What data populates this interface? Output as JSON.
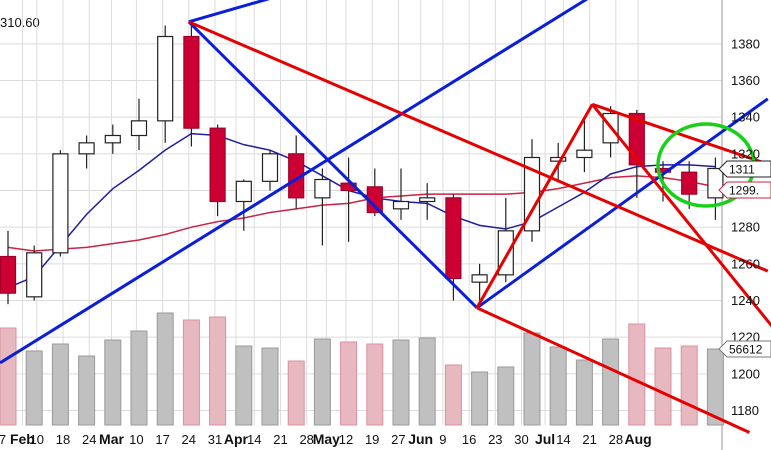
{
  "chart_data": {
    "type": "candlestick",
    "top_left_text": "310.60",
    "y_axis": {
      "price_min": 1168,
      "price_max": 1402,
      "price_ticks": [
        1180,
        1200,
        1220,
        1240,
        1260,
        1280,
        1300,
        1320,
        1340,
        1360,
        1380
      ],
      "side": "right"
    },
    "x_ticks": [
      {
        "label": "27",
        "bold": false,
        "i": -0.35
      },
      {
        "label": "Feb",
        "bold": true,
        "i": 0.55
      },
      {
        "label": "10",
        "bold": false,
        "i": 1.1
      },
      {
        "label": "18",
        "bold": false,
        "i": 2.1
      },
      {
        "label": "24",
        "bold": false,
        "i": 3.1
      },
      {
        "label": "Mar",
        "bold": true,
        "i": 3.95
      },
      {
        "label": "10",
        "bold": false,
        "i": 4.9
      },
      {
        "label": "17",
        "bold": false,
        "i": 5.9
      },
      {
        "label": "24",
        "bold": false,
        "i": 6.9
      },
      {
        "label": "31",
        "bold": false,
        "i": 7.9
      },
      {
        "label": "Apr",
        "bold": true,
        "i": 8.7
      },
      {
        "label": "14",
        "bold": false,
        "i": 9.4
      },
      {
        "label": "21",
        "bold": false,
        "i": 10.4
      },
      {
        "label": "28",
        "bold": false,
        "i": 11.4
      },
      {
        "label": "May",
        "bold": true,
        "i": 12.15
      },
      {
        "label": "12",
        "bold": false,
        "i": 12.9
      },
      {
        "label": "19",
        "bold": false,
        "i": 13.9
      },
      {
        "label": "27",
        "bold": false,
        "i": 14.9
      },
      {
        "label": "Jun",
        "bold": true,
        "i": 15.75
      },
      {
        "label": "9",
        "bold": false,
        "i": 16.6
      },
      {
        "label": "16",
        "bold": false,
        "i": 17.6
      },
      {
        "label": "23",
        "bold": false,
        "i": 18.6
      },
      {
        "label": "30",
        "bold": false,
        "i": 19.6
      },
      {
        "label": "Jul",
        "bold": true,
        "i": 20.5
      },
      {
        "label": "14",
        "bold": false,
        "i": 21.2
      },
      {
        "label": "21",
        "bold": false,
        "i": 22.2
      },
      {
        "label": "28",
        "bold": false,
        "i": 23.2
      },
      {
        "label": "Aug",
        "bold": true,
        "i": 24.05
      }
    ],
    "candles": [
      {
        "o": 1264,
        "h": 1278,
        "l": 1238,
        "c": 1244
      },
      {
        "o": 1242,
        "h": 1270,
        "l": 1240,
        "c": 1266
      },
      {
        "o": 1266,
        "h": 1322,
        "l": 1264,
        "c": 1320
      },
      {
        "o": 1320,
        "h": 1330,
        "l": 1312,
        "c": 1326
      },
      {
        "o": 1326,
        "h": 1336,
        "l": 1320,
        "c": 1330
      },
      {
        "o": 1330,
        "h": 1350,
        "l": 1322,
        "c": 1338
      },
      {
        "o": 1338,
        "h": 1390,
        "l": 1326,
        "c": 1384
      },
      {
        "o": 1384,
        "h": 1390,
        "l": 1324,
        "c": 1334
      },
      {
        "o": 1334,
        "h": 1336,
        "l": 1286,
        "c": 1294
      },
      {
        "o": 1294,
        "h": 1306,
        "l": 1278,
        "c": 1305
      },
      {
        "o": 1305,
        "h": 1322,
        "l": 1300,
        "c": 1320
      },
      {
        "o": 1320,
        "h": 1330,
        "l": 1290,
        "c": 1296
      },
      {
        "o": 1296,
        "h": 1312,
        "l": 1270,
        "c": 1306
      },
      {
        "o": 1304,
        "h": 1318,
        "l": 1272,
        "c": 1300
      },
      {
        "o": 1302,
        "h": 1312,
        "l": 1286,
        "c": 1288
      },
      {
        "o": 1290,
        "h": 1312,
        "l": 1284,
        "c": 1294
      },
      {
        "o": 1294,
        "h": 1304,
        "l": 1284,
        "c": 1296
      },
      {
        "o": 1296,
        "h": 1298,
        "l": 1240,
        "c": 1252
      },
      {
        "o": 1250,
        "h": 1260,
        "l": 1240,
        "c": 1254
      },
      {
        "o": 1254,
        "h": 1296,
        "l": 1250,
        "c": 1278
      },
      {
        "o": 1278,
        "h": 1328,
        "l": 1272,
        "c": 1318
      },
      {
        "o": 1316,
        "h": 1326,
        "l": 1306,
        "c": 1318
      },
      {
        "o": 1318,
        "h": 1338,
        "l": 1310,
        "c": 1322
      },
      {
        "o": 1326,
        "h": 1346,
        "l": 1318,
        "c": 1342
      },
      {
        "o": 1342,
        "h": 1344,
        "l": 1296,
        "c": 1314
      },
      {
        "o": 1312,
        "h": 1316,
        "l": 1294,
        "c": 1310
      },
      {
        "o": 1310,
        "h": 1316,
        "l": 1290,
        "c": 1298
      },
      {
        "o": 1296,
        "h": 1318,
        "l": 1284,
        "c": 1312
      }
    ],
    "volume_rel": [
      0.97,
      0.74,
      0.81,
      0.69,
      0.85,
      0.94,
      1.12,
      1.05,
      1.08,
      0.79,
      0.77,
      0.64,
      0.86,
      0.83,
      0.81,
      0.85,
      0.87,
      0.6,
      0.53,
      0.58,
      0.92,
      0.78,
      0.65,
      0.86,
      1.01,
      0.77,
      0.79,
      0.76
    ],
    "sma_blue": [
      1247,
      1253,
      1270,
      1287,
      1301,
      1311,
      1322,
      1331,
      1330,
      1325,
      1322,
      1316,
      1308,
      1300,
      1296,
      1294,
      1293,
      1286,
      1281,
      1279,
      1283,
      1291,
      1299,
      1309,
      1313,
      1314,
      1314,
      1313
    ],
    "sma_red": [
      1269,
      1267,
      1268,
      1269,
      1271,
      1273,
      1276,
      1280,
      1283,
      1285,
      1288,
      1290,
      1292,
      1293,
      1296,
      1297,
      1298,
      1298,
      1298,
      1298,
      1299,
      1301,
      1304,
      1307,
      1308,
      1307,
      1305,
      1302
    ],
    "last_labels": [
      "1311",
      "1299.",
      "56612"
    ],
    "colors": {
      "up": "#ffffff",
      "down": "#cc0033",
      "vol_up": "#c0c0c0",
      "vol_down": "#e8b8c0",
      "sma_blue": "#1f1f9f",
      "sma_red": "#cc2244",
      "trend_blue": "#0b1fd8",
      "trend_red": "#e60000",
      "circle": "#18d018",
      "grid": "#dcdcdc"
    }
  }
}
